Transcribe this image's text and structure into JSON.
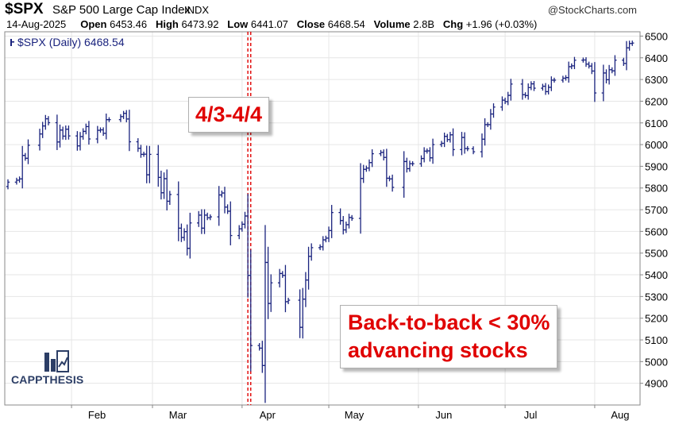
{
  "header": {
    "symbol": "$SPX",
    "name": "S&P 500 Large Cap Index",
    "exchange": "INDX",
    "credit": "@StockCharts.com",
    "date": "14-Aug-2025",
    "open_label": "Open",
    "open": "6453.46",
    "high_label": "High",
    "high": "6473.92",
    "low_label": "Low",
    "low": "6441.07",
    "close_label": "Close",
    "close": "6468.54",
    "volume_label": "Volume",
    "volume": "2.8B",
    "chg_label": "Chg",
    "chg": "+1.96 (+0.03%)"
  },
  "legend": "$SPX (Daily) 6468.54",
  "annotations": {
    "dates": "4/3-4/4",
    "note_line1": "Back-to-back < 30%",
    "note_line2": "advancing stocks"
  },
  "logo": {
    "text": "CAPPTHESIS"
  },
  "colors": {
    "bars": "#1a237e",
    "marker": "#e00000",
    "text_red": "#e00000",
    "grid": "#e6e6e6"
  },
  "chart_data": {
    "type": "ohlc",
    "series_name": "$SPX (Daily)",
    "xlabels": [
      "Feb",
      "Mar",
      "Apr",
      "May",
      "Jun",
      "Jul",
      "Aug"
    ],
    "ylim": [
      4800,
      6520
    ],
    "yticks": [
      4900,
      5000,
      5100,
      5200,
      5300,
      5400,
      5500,
      5600,
      5700,
      5800,
      5900,
      6000,
      6100,
      6200,
      6300,
      6400,
      6500
    ],
    "marked_dates": [
      "2025-04-03",
      "2025-04-04"
    ],
    "grid": true,
    "axis_position": "right",
    "daily_closes": [
      [
        "2025-01-10",
        5827
      ],
      [
        "2025-01-13",
        5836
      ],
      [
        "2025-01-14",
        5842
      ],
      [
        "2025-01-15",
        5950
      ],
      [
        "2025-01-16",
        5937
      ],
      [
        "2025-01-17",
        5997
      ],
      [
        "2025-01-21",
        6049
      ],
      [
        "2025-01-22",
        6086
      ],
      [
        "2025-01-23",
        6119
      ],
      [
        "2025-01-24",
        6101
      ],
      [
        "2025-01-27",
        6012
      ],
      [
        "2025-01-28",
        6067
      ],
      [
        "2025-01-29",
        6039
      ],
      [
        "2025-01-30",
        6071
      ],
      [
        "2025-01-31",
        6040
      ],
      [
        "2025-02-03",
        5994
      ],
      [
        "2025-02-04",
        6037
      ],
      [
        "2025-02-05",
        6061
      ],
      [
        "2025-02-06",
        6083
      ],
      [
        "2025-02-07",
        6026
      ],
      [
        "2025-02-10",
        6066
      ],
      [
        "2025-02-11",
        6068
      ],
      [
        "2025-02-12",
        6052
      ],
      [
        "2025-02-13",
        6115
      ],
      [
        "2025-02-14",
        6115
      ],
      [
        "2025-02-18",
        6129
      ],
      [
        "2025-02-19",
        6144
      ],
      [
        "2025-02-20",
        6118
      ],
      [
        "2025-02-21",
        6013
      ],
      [
        "2025-02-24",
        5983
      ],
      [
        "2025-02-25",
        5955
      ],
      [
        "2025-02-26",
        5956
      ],
      [
        "2025-02-27",
        5861
      ],
      [
        "2025-02-28",
        5955
      ],
      [
        "2025-03-03",
        5849
      ],
      [
        "2025-03-04",
        5778
      ],
      [
        "2025-03-05",
        5843
      ],
      [
        "2025-03-06",
        5739
      ],
      [
        "2025-03-07",
        5770
      ],
      [
        "2025-03-10",
        5615
      ],
      [
        "2025-03-11",
        5572
      ],
      [
        "2025-03-12",
        5599
      ],
      [
        "2025-03-13",
        5522
      ],
      [
        "2025-03-14",
        5639
      ],
      [
        "2025-03-17",
        5675
      ],
      [
        "2025-03-18",
        5615
      ],
      [
        "2025-03-19",
        5675
      ],
      [
        "2025-03-20",
        5663
      ],
      [
        "2025-03-21",
        5667
      ],
      [
        "2025-03-24",
        5768
      ],
      [
        "2025-03-25",
        5777
      ],
      [
        "2025-03-26",
        5712
      ],
      [
        "2025-03-27",
        5693
      ],
      [
        "2025-03-28",
        5581
      ],
      [
        "2025-03-31",
        5612
      ],
      [
        "2025-04-01",
        5633
      ],
      [
        "2025-04-02",
        5671
      ],
      [
        "2025-04-03",
        5397
      ],
      [
        "2025-04-04",
        5074
      ],
      [
        "2025-04-07",
        5062
      ],
      [
        "2025-04-08",
        4982
      ],
      [
        "2025-04-09",
        5457
      ],
      [
        "2025-04-10",
        5268
      ],
      [
        "2025-04-11",
        5363
      ],
      [
        "2025-04-14",
        5406
      ],
      [
        "2025-04-15",
        5397
      ],
      [
        "2025-04-16",
        5276
      ],
      [
        "2025-04-17",
        5283
      ],
      [
        "2025-04-21",
        5158
      ],
      [
        "2025-04-22",
        5288
      ],
      [
        "2025-04-23",
        5376
      ],
      [
        "2025-04-24",
        5485
      ],
      [
        "2025-04-25",
        5525
      ],
      [
        "2025-04-28",
        5529
      ],
      [
        "2025-04-29",
        5561
      ],
      [
        "2025-04-30",
        5569
      ],
      [
        "2025-05-01",
        5604
      ],
      [
        "2025-05-02",
        5687
      ],
      [
        "2025-05-05",
        5650
      ],
      [
        "2025-05-06",
        5607
      ],
      [
        "2025-05-07",
        5631
      ],
      [
        "2025-05-08",
        5664
      ],
      [
        "2025-05-09",
        5660
      ],
      [
        "2025-05-12",
        5844
      ],
      [
        "2025-05-13",
        5886
      ],
      [
        "2025-05-14",
        5892
      ],
      [
        "2025-05-15",
        5917
      ],
      [
        "2025-05-16",
        5958
      ],
      [
        "2025-05-19",
        5964
      ],
      [
        "2025-05-20",
        5941
      ],
      [
        "2025-05-21",
        5845
      ],
      [
        "2025-05-22",
        5842
      ],
      [
        "2025-05-23",
        5803
      ],
      [
        "2025-05-27",
        5922
      ],
      [
        "2025-05-28",
        5889
      ],
      [
        "2025-05-29",
        5912
      ],
      [
        "2025-05-30",
        5912
      ],
      [
        "2025-06-02",
        5936
      ],
      [
        "2025-06-03",
        5970
      ],
      [
        "2025-06-04",
        5971
      ],
      [
        "2025-06-05",
        5939
      ],
      [
        "2025-06-06",
        6000
      ],
      [
        "2025-06-09",
        6006
      ],
      [
        "2025-06-10",
        6038
      ],
      [
        "2025-06-11",
        6023
      ],
      [
        "2025-06-12",
        6045
      ],
      [
        "2025-06-13",
        5977
      ],
      [
        "2025-06-16",
        6033
      ],
      [
        "2025-06-17",
        5982
      ],
      [
        "2025-06-18",
        5981
      ],
      [
        "2025-06-20",
        5967
      ],
      [
        "2025-06-23",
        6025
      ],
      [
        "2025-06-24",
        6092
      ],
      [
        "2025-06-25",
        6092
      ],
      [
        "2025-06-26",
        6141
      ],
      [
        "2025-06-27",
        6173
      ],
      [
        "2025-06-30",
        6205
      ],
      [
        "2025-07-01",
        6198
      ],
      [
        "2025-07-02",
        6227
      ],
      [
        "2025-07-03",
        6279
      ],
      [
        "2025-07-07",
        6230
      ],
      [
        "2025-07-08",
        6226
      ],
      [
        "2025-07-09",
        6263
      ],
      [
        "2025-07-10",
        6280
      ],
      [
        "2025-07-11",
        6260
      ],
      [
        "2025-07-14",
        6269
      ],
      [
        "2025-07-15",
        6244
      ],
      [
        "2025-07-16",
        6264
      ],
      [
        "2025-07-17",
        6297
      ],
      [
        "2025-07-18",
        6297
      ],
      [
        "2025-07-21",
        6306
      ],
      [
        "2025-07-22",
        6309
      ],
      [
        "2025-07-23",
        6359
      ],
      [
        "2025-07-24",
        6363
      ],
      [
        "2025-07-25",
        6389
      ],
      [
        "2025-07-28",
        6390
      ],
      [
        "2025-07-29",
        6371
      ],
      [
        "2025-07-30",
        6362
      ],
      [
        "2025-07-31",
        6339
      ],
      [
        "2025-08-01",
        6238
      ],
      [
        "2025-08-04",
        6330
      ],
      [
        "2025-08-05",
        6299
      ],
      [
        "2025-08-06",
        6345
      ],
      [
        "2025-08-07",
        6340
      ],
      [
        "2025-08-08",
        6389
      ],
      [
        "2025-08-11",
        6374
      ],
      [
        "2025-08-12",
        6446
      ],
      [
        "2025-08-13",
        6466
      ],
      [
        "2025-08-14",
        6468
      ]
    ]
  }
}
